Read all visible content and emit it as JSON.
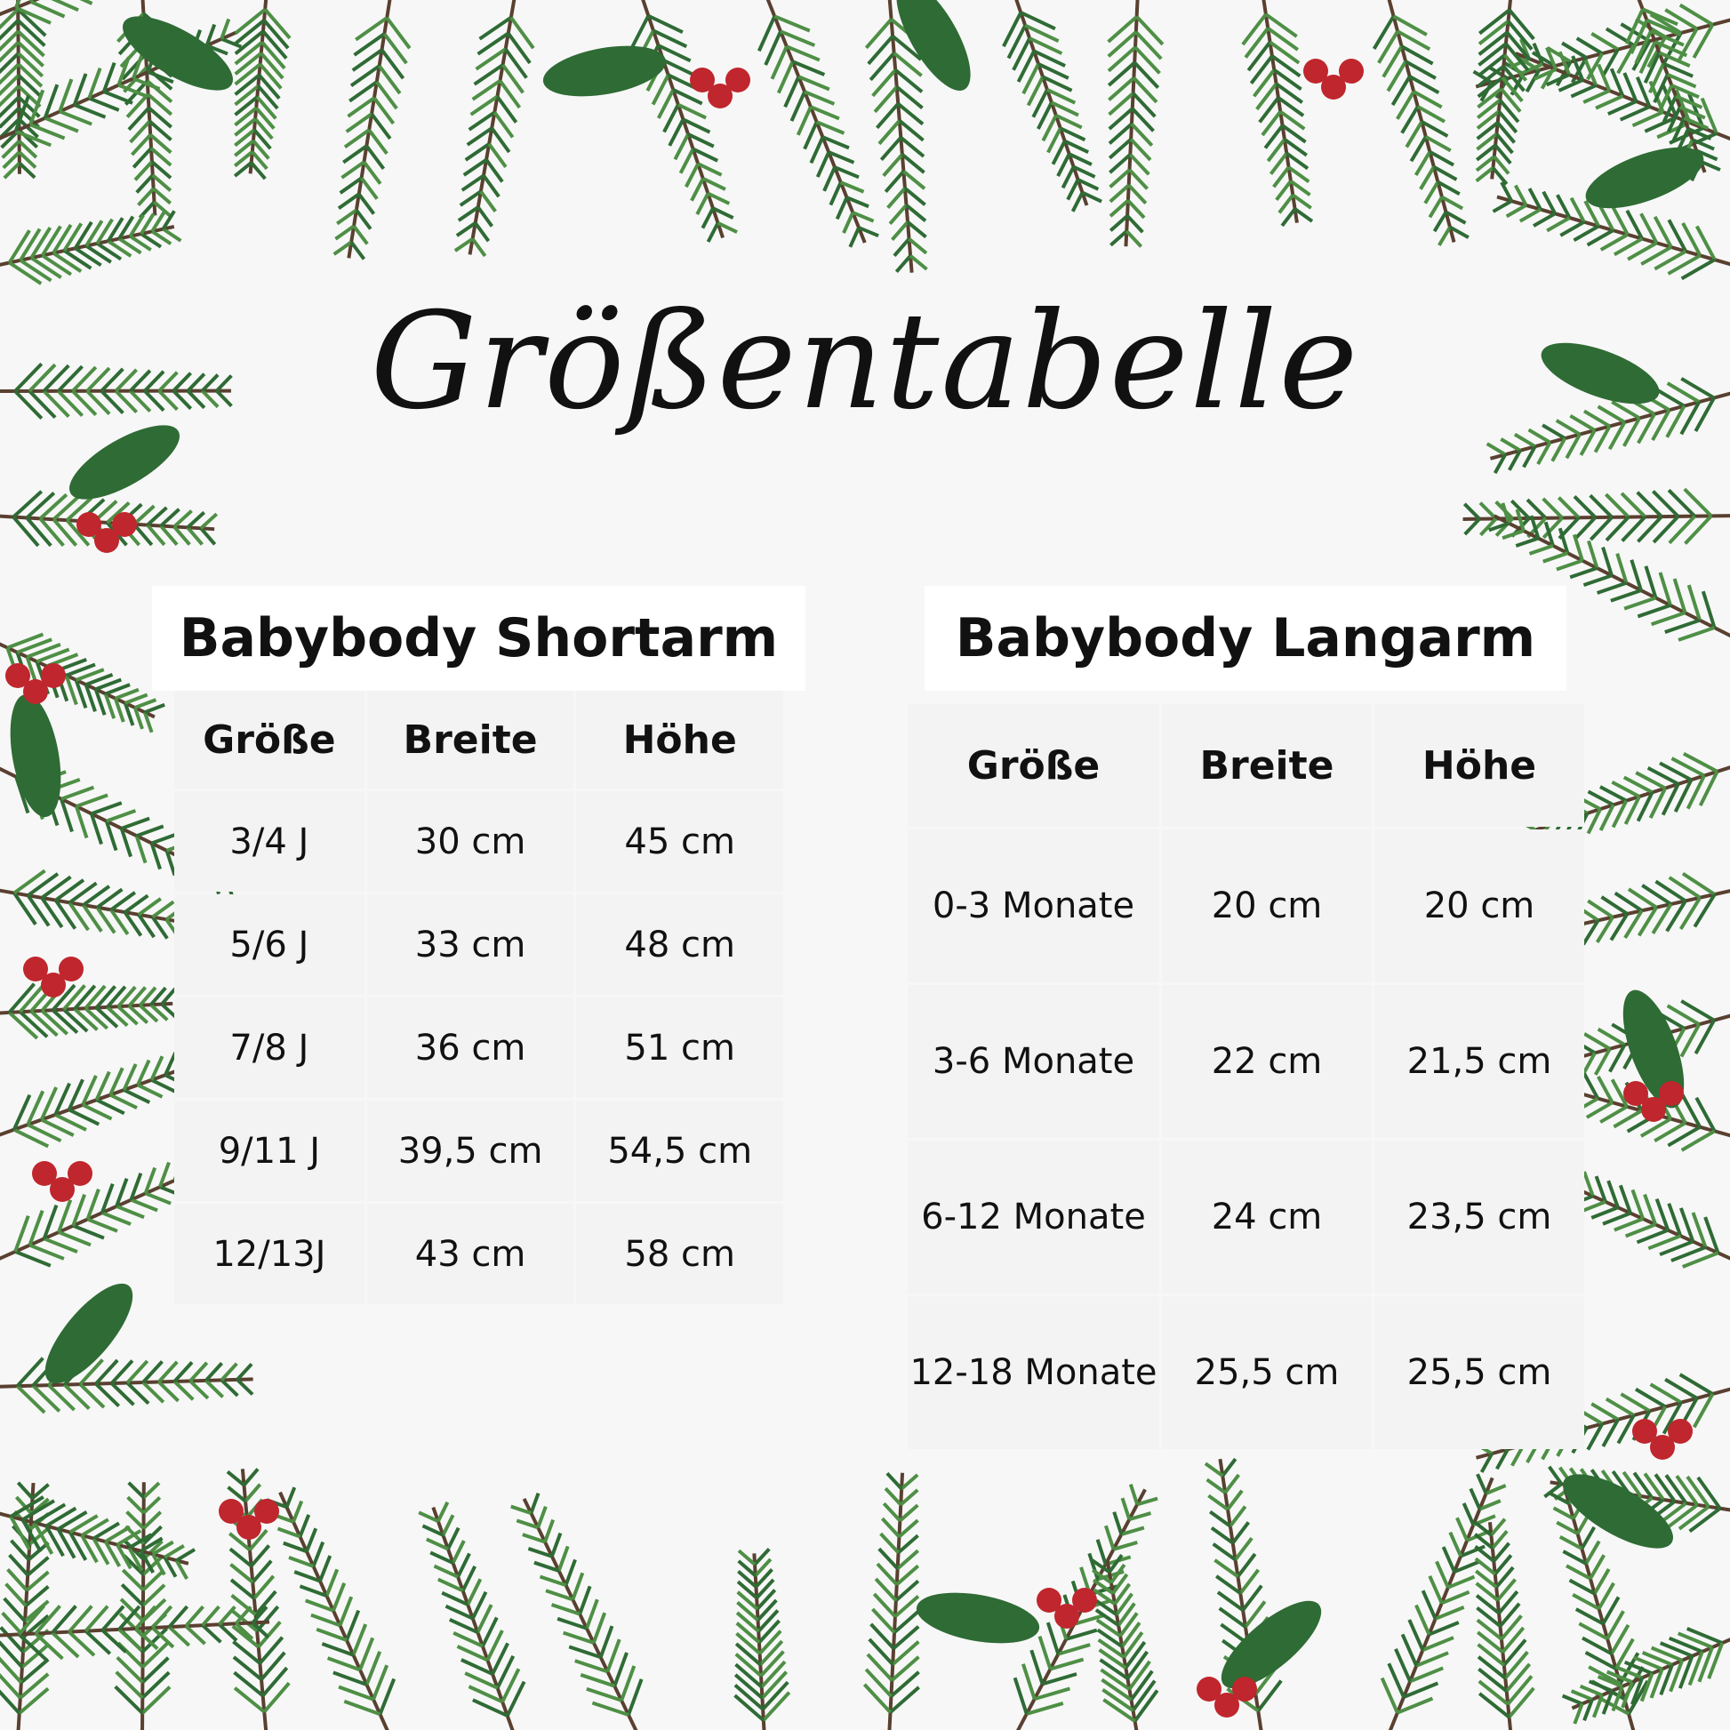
{
  "title": "Größentabelle",
  "shortarm": {
    "heading": "Babybody Shortarm",
    "columns": [
      "Größe",
      "Breite",
      "Höhe"
    ],
    "rows": [
      [
        "3/4 J",
        "30 cm",
        "45 cm"
      ],
      [
        "5/6 J",
        "33 cm",
        "48 cm"
      ],
      [
        "7/8 J",
        "36 cm",
        "51 cm"
      ],
      [
        "9/11 J",
        "39,5 cm",
        "54,5 cm"
      ],
      [
        "12/13J",
        "43 cm",
        "58 cm"
      ]
    ]
  },
  "langarm": {
    "heading": "Babybody Langarm",
    "columns": [
      "Größe",
      "Breite",
      "Höhe"
    ],
    "rows": [
      [
        "0-3 Monate",
        "20 cm",
        "20 cm"
      ],
      [
        "3-6 Monate",
        "22 cm",
        "21,5 cm"
      ],
      [
        "6-12 Monate",
        "24 cm",
        "23,5 cm"
      ],
      [
        "12-18 Monate",
        "25,5 cm",
        "25,5 cm"
      ]
    ]
  },
  "colors": {
    "background": "#f7f7f7",
    "foliage": "#2f6b35",
    "berries": "#c0262d"
  }
}
